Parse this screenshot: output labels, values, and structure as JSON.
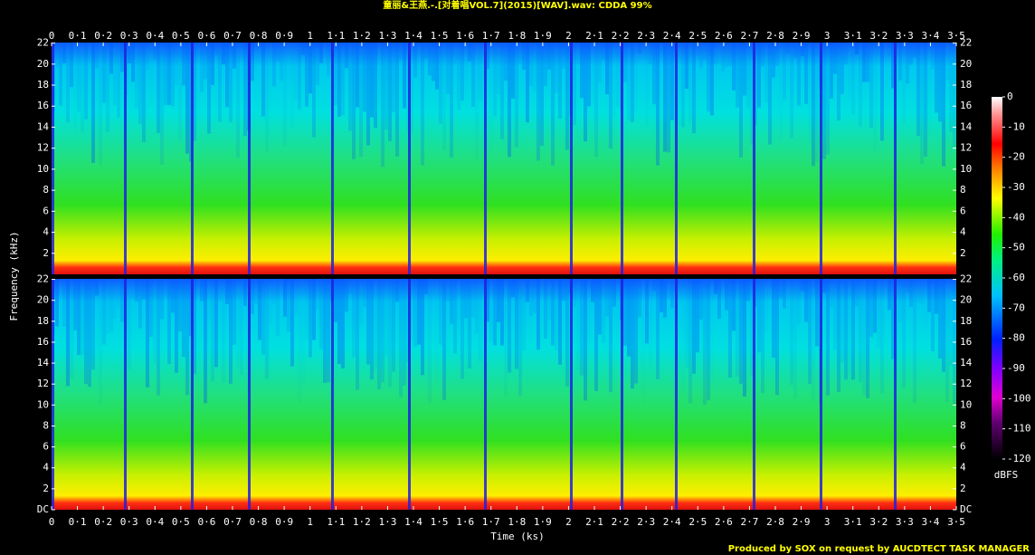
{
  "chart_data": {
    "type": "spectrogram",
    "title": "童丽&王燕.-.[对着唱VOL.7](2015)[WAV].wav: CDDA 99%",
    "xlabel": "Time (ks)",
    "ylabel": "Frequency (kHz)",
    "footer": "Produced by SOX on request by AUCDTECT TASK MANAGER",
    "xlim": [
      0,
      3.5
    ],
    "xticks": [
      0,
      {
        "value": 0.1,
        "label": "0·1"
      },
      {
        "value": 0.2,
        "label": "0·2"
      },
      {
        "value": 0.3,
        "label": "0·3"
      },
      {
        "value": 0.4,
        "label": "0·4"
      },
      {
        "value": 0.5,
        "label": "0·5"
      },
      {
        "value": 0.6,
        "label": "0·6"
      },
      {
        "value": 0.7,
        "label": "0·7"
      },
      {
        "value": 0.8,
        "label": "0·8"
      },
      {
        "value": 0.9,
        "label": "0·9"
      },
      1,
      {
        "value": 1.1,
        "label": "1·1"
      },
      {
        "value": 1.2,
        "label": "1·2"
      },
      {
        "value": 1.3,
        "label": "1·3"
      },
      {
        "value": 1.4,
        "label": "1·4"
      },
      {
        "value": 1.5,
        "label": "1·5"
      },
      {
        "value": 1.6,
        "label": "1·6"
      },
      {
        "value": 1.7,
        "label": "1·7"
      },
      {
        "value": 1.8,
        "label": "1·8"
      },
      {
        "value": 1.9,
        "label": "1·9"
      },
      2,
      {
        "value": 2.1,
        "label": "2·1"
      },
      {
        "value": 2.2,
        "label": "2·2"
      },
      {
        "value": 2.3,
        "label": "2·3"
      },
      {
        "value": 2.4,
        "label": "2·4"
      },
      {
        "value": 2.5,
        "label": "2·5"
      },
      {
        "value": 2.6,
        "label": "2·6"
      },
      {
        "value": 2.7,
        "label": "2·7"
      },
      {
        "value": 2.8,
        "label": "2·8"
      },
      {
        "value": 2.9,
        "label": "2·9"
      },
      3,
      {
        "value": 3.1,
        "label": "3·1"
      },
      {
        "value": 3.2,
        "label": "3·2"
      },
      {
        "value": 3.3,
        "label": "3·3"
      },
      {
        "value": 3.4,
        "label": "3·4"
      },
      {
        "value": 3.5,
        "label": "3·5"
      }
    ],
    "ylim": [
      0,
      22.05
    ],
    "channels": [
      {
        "yticks": [
          2,
          4,
          6,
          8,
          10,
          12,
          14,
          16,
          18,
          20,
          22
        ]
      },
      {
        "yticks": [
          {
            "value": 0,
            "label": "DC"
          },
          2,
          4,
          6,
          8,
          10,
          12,
          14,
          16,
          18,
          20,
          22
        ]
      }
    ],
    "colorbar": {
      "label": "dBFS",
      "lim": [
        -120,
        0
      ],
      "ticks": [
        0,
        -10,
        -20,
        -30,
        -40,
        -50,
        -60,
        -70,
        -80,
        -90,
        -100,
        -110,
        -120
      ]
    }
  }
}
